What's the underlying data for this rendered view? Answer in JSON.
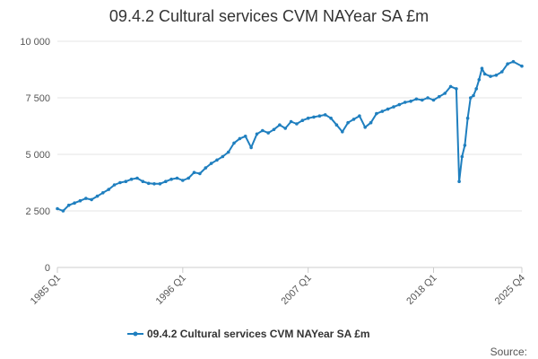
{
  "chart_data": {
    "type": "line",
    "title": "09.4.2 Cultural services CVM NAYear SA £m",
    "xlabel": "",
    "ylabel": "",
    "ylim": [
      0,
      10000
    ],
    "yticks": [
      {
        "value": 0,
        "label": "0"
      },
      {
        "value": 2500,
        "label": "2 500"
      },
      {
        "value": 5000,
        "label": "5 000"
      },
      {
        "value": 7500,
        "label": "7 500"
      },
      {
        "value": 10000,
        "label": "10 000"
      }
    ],
    "xticks": [
      {
        "value": "1985 Q1",
        "label": "1985 Q1"
      },
      {
        "value": "1996 Q1",
        "label": "1996 Q1"
      },
      {
        "value": "2007 Q1",
        "label": "2007 Q1"
      },
      {
        "value": "2018 Q1",
        "label": "2018 Q1"
      },
      {
        "value": "2025 Q4",
        "label": "2025 Q4"
      }
    ],
    "grid": true,
    "legend_position": "bottom",
    "source_label": "Source:",
    "series": [
      {
        "name": "09.4.2 Cultural services CVM NAYear SA £m",
        "color": "#1f7fbf",
        "points": [
          [
            "1985 Q1",
            2600
          ],
          [
            "1985 Q3",
            2500
          ],
          [
            "1986 Q1",
            2750
          ],
          [
            "1986 Q3",
            2850
          ],
          [
            "1987 Q1",
            2950
          ],
          [
            "1987 Q3",
            3050
          ],
          [
            "1988 Q1",
            3000
          ],
          [
            "1988 Q3",
            3150
          ],
          [
            "1989 Q1",
            3300
          ],
          [
            "1989 Q3",
            3450
          ],
          [
            "1990 Q1",
            3650
          ],
          [
            "1990 Q3",
            3750
          ],
          [
            "1991 Q1",
            3800
          ],
          [
            "1991 Q3",
            3900
          ],
          [
            "1992 Q1",
            3950
          ],
          [
            "1992 Q3",
            3800
          ],
          [
            "1993 Q1",
            3720
          ],
          [
            "1993 Q3",
            3700
          ],
          [
            "1994 Q1",
            3700
          ],
          [
            "1994 Q3",
            3800
          ],
          [
            "1995 Q1",
            3900
          ],
          [
            "1995 Q3",
            3950
          ],
          [
            "1996 Q1",
            3850
          ],
          [
            "1996 Q3",
            3950
          ],
          [
            "1997 Q1",
            4200
          ],
          [
            "1997 Q3",
            4150
          ],
          [
            "1998 Q1",
            4400
          ],
          [
            "1998 Q3",
            4600
          ],
          [
            "1999 Q1",
            4750
          ],
          [
            "1999 Q3",
            4900
          ],
          [
            "2000 Q1",
            5100
          ],
          [
            "2000 Q3",
            5500
          ],
          [
            "2001 Q1",
            5700
          ],
          [
            "2001 Q3",
            5800
          ],
          [
            "2002 Q1",
            5300
          ],
          [
            "2002 Q3",
            5900
          ],
          [
            "2003 Q1",
            6050
          ],
          [
            "2003 Q3",
            5950
          ],
          [
            "2004 Q1",
            6100
          ],
          [
            "2004 Q3",
            6300
          ],
          [
            "2005 Q1",
            6150
          ],
          [
            "2005 Q3",
            6450
          ],
          [
            "2006 Q1",
            6350
          ],
          [
            "2006 Q3",
            6500
          ],
          [
            "2007 Q1",
            6600
          ],
          [
            "2007 Q3",
            6650
          ],
          [
            "2008 Q1",
            6700
          ],
          [
            "2008 Q3",
            6750
          ],
          [
            "2009 Q1",
            6600
          ],
          [
            "2009 Q3",
            6300
          ],
          [
            "2010 Q1",
            6000
          ],
          [
            "2010 Q3",
            6400
          ],
          [
            "2011 Q1",
            6550
          ],
          [
            "2011 Q3",
            6700
          ],
          [
            "2012 Q1",
            6200
          ],
          [
            "2012 Q3",
            6400
          ],
          [
            "2013 Q1",
            6800
          ],
          [
            "2013 Q3",
            6900
          ],
          [
            "2014 Q1",
            7000
          ],
          [
            "2014 Q3",
            7100
          ],
          [
            "2015 Q1",
            7200
          ],
          [
            "2015 Q3",
            7300
          ],
          [
            "2016 Q1",
            7350
          ],
          [
            "2016 Q3",
            7450
          ],
          [
            "2017 Q1",
            7400
          ],
          [
            "2017 Q3",
            7500
          ],
          [
            "2018 Q1",
            7400
          ],
          [
            "2018 Q3",
            7550
          ],
          [
            "2019 Q1",
            7700
          ],
          [
            "2019 Q3",
            8000
          ],
          [
            "2020 Q1",
            7900
          ],
          [
            "2020 Q2",
            3800
          ],
          [
            "2020 Q3",
            4900
          ],
          [
            "2020 Q4",
            5400
          ],
          [
            "2021 Q1",
            6600
          ],
          [
            "2021 Q2",
            7500
          ],
          [
            "2021 Q3",
            7600
          ],
          [
            "2021 Q4",
            7900
          ],
          [
            "2022 Q1",
            8300
          ],
          [
            "2022 Q2",
            8800
          ],
          [
            "2022 Q3",
            8550
          ],
          [
            "2023 Q1",
            8450
          ],
          [
            "2023 Q3",
            8500
          ],
          [
            "2024 Q1",
            8650
          ],
          [
            "2024 Q3",
            9000
          ],
          [
            "2025 Q1",
            9100
          ],
          [
            "2025 Q4",
            8900
          ]
        ]
      }
    ]
  }
}
